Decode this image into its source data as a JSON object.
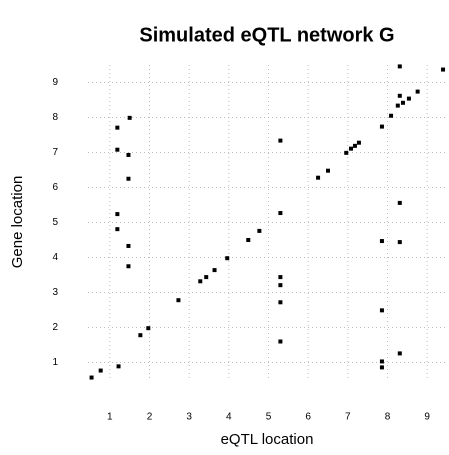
{
  "chart_data": {
    "type": "scatter",
    "title": "Simulated eQTL network G",
    "x_label": "eQTL location",
    "y_label": "Gene location",
    "color": "#000000",
    "grid": true,
    "xlim": [
      0.45,
      9.5
    ],
    "ylim": [
      0.5,
      9.5
    ],
    "xticks": [
      1,
      2,
      3,
      4,
      5,
      6,
      7,
      8,
      9
    ],
    "yticks": [
      1,
      2,
      3,
      4,
      5,
      6,
      7,
      8,
      9
    ],
    "x": [
      0.54,
      0.77,
      1.22,
      1.19,
      1.19,
      1.19,
      1.19,
      1.5,
      1.47,
      1.47,
      1.47,
      1.47,
      1.77,
      1.97,
      2.73,
      3.28,
      3.43,
      3.64,
      3.96,
      4.49,
      4.77,
      5.3,
      5.3,
      5.3,
      5.3,
      5.3,
      5.3,
      6.25,
      6.5,
      6.96,
      7.08,
      7.18,
      7.28,
      7.86,
      7.86,
      7.86,
      7.86,
      7.86,
      8.09,
      8.26,
      8.31,
      8.31,
      8.31,
      8.31,
      8.31,
      8.39,
      8.54,
      8.76,
      9.4
    ],
    "values": [
      0.57,
      0.77,
      0.89,
      7.71,
      7.08,
      5.24,
      4.81,
      7.99,
      6.93,
      6.25,
      4.33,
      3.75,
      1.78,
      1.98,
      2.78,
      3.32,
      3.44,
      3.64,
      3.98,
      4.5,
      4.76,
      7.34,
      5.27,
      3.44,
      3.21,
      2.72,
      1.6,
      6.28,
      6.48,
      6.99,
      7.11,
      7.19,
      7.28,
      7.74,
      4.47,
      2.49,
      1.03,
      0.86,
      8.05,
      8.34,
      8.62,
      9.46,
      5.56,
      4.44,
      1.26,
      8.42,
      8.54,
      8.74,
      9.37
    ]
  }
}
